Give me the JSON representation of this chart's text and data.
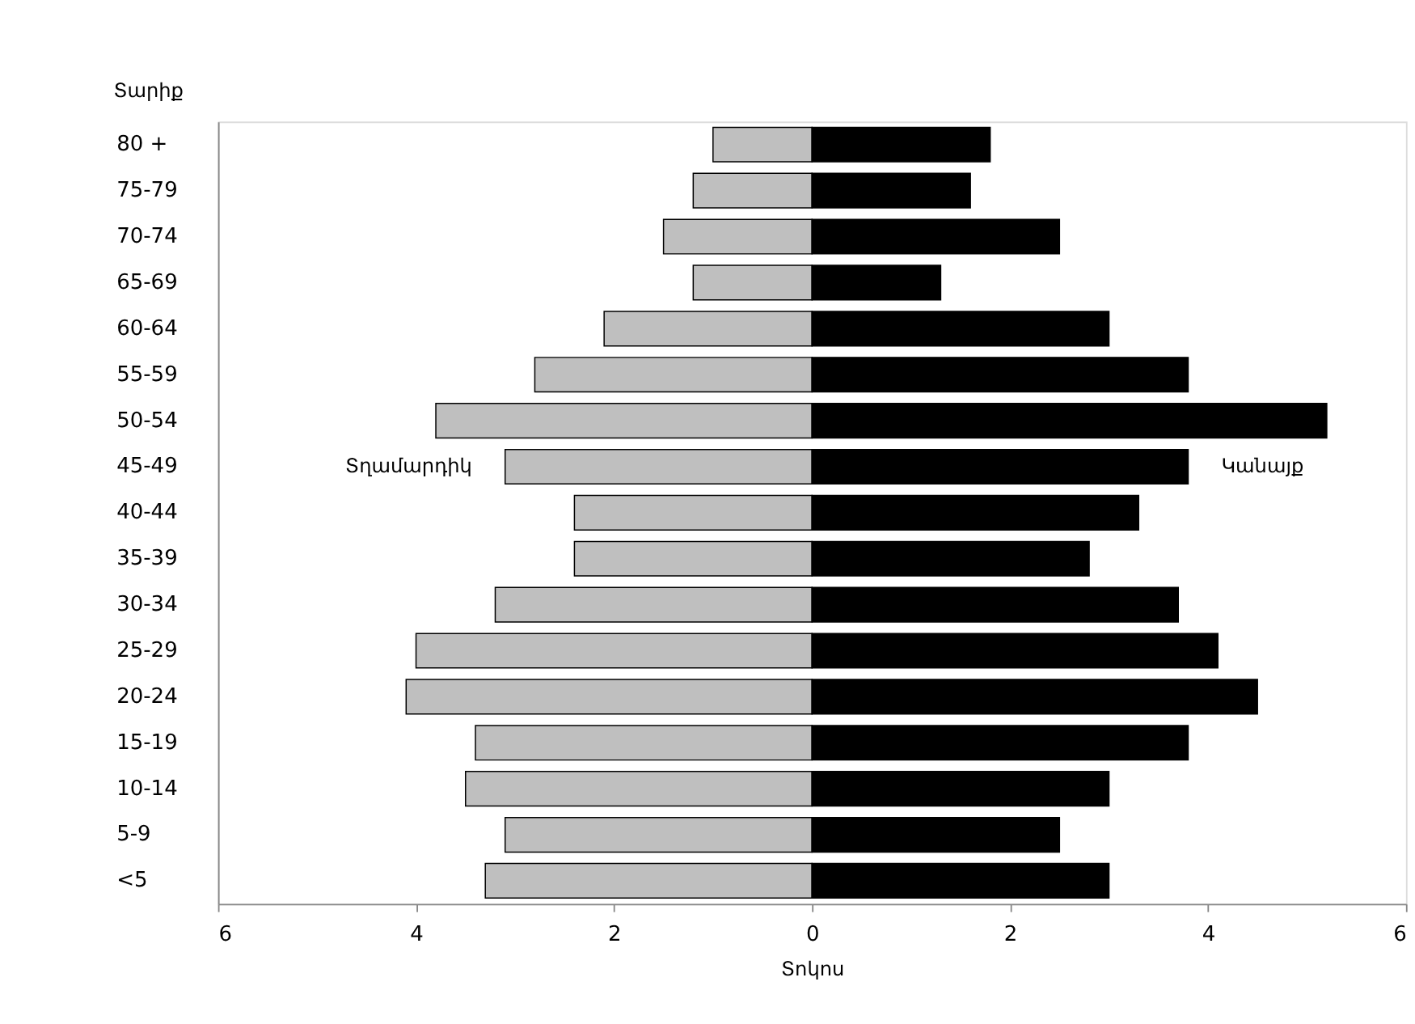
{
  "chart_data": {
    "type": "bar",
    "orientation": "horizontal",
    "xlabel": "Տոկոս",
    "ylabel": "Տարիք",
    "categories": [
      "80 +",
      "75-79",
      "70-74",
      "65-69",
      "60-64",
      "55-59",
      "50-54",
      "45-49",
      "40-44",
      "35-39",
      "30-34",
      "25-29",
      "20-24",
      "15-19",
      "10-14",
      "5-9",
      "<5"
    ],
    "series": [
      {
        "name": "Տղամարդիկ",
        "color": "#bfbfbf",
        "values": [
          -1.0,
          -1.2,
          -1.5,
          -1.2,
          -2.1,
          -2.8,
          -3.8,
          -3.1,
          -2.4,
          -2.4,
          -3.2,
          -4.0,
          -4.1,
          -3.4,
          -3.5,
          -3.1,
          -3.3
        ]
      },
      {
        "name": "Կանայք",
        "color": "#000000",
        "values": [
          1.8,
          1.6,
          2.5,
          1.3,
          3.0,
          3.8,
          5.2,
          3.8,
          3.3,
          2.8,
          3.7,
          4.1,
          4.5,
          3.8,
          3.0,
          2.5,
          3.0
        ]
      }
    ],
    "xlim": [
      -6,
      6
    ],
    "xticks": [
      {
        "value": -6,
        "label": "6"
      },
      {
        "value": -4,
        "label": "4"
      },
      {
        "value": -2,
        "label": "2"
      },
      0,
      2,
      4,
      6
    ],
    "stacked": true,
    "grid": false,
    "legend": false
  }
}
